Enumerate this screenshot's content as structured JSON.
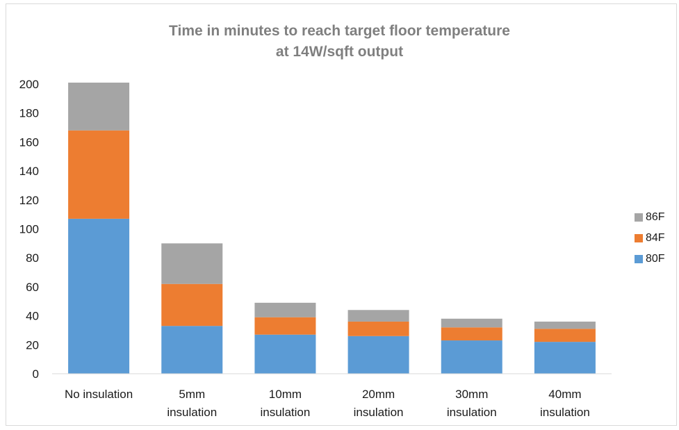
{
  "chart_data": {
    "type": "bar",
    "stacked": true,
    "title_line1": "Time in minutes to reach target floor temperature",
    "title_line2": "at 14W/sqft output",
    "categories": [
      [
        "No insulation"
      ],
      [
        "5mm",
        "insulation"
      ],
      [
        "10mm",
        "insulation"
      ],
      [
        "20mm",
        "insulation"
      ],
      [
        "30mm",
        "insulation"
      ],
      [
        "40mm",
        "insulation"
      ]
    ],
    "series": [
      {
        "name": "80F",
        "color": "#5b9bd5",
        "values": [
          107,
          33,
          27,
          26,
          23,
          22
        ]
      },
      {
        "name": "84F",
        "color": "#ed7d31",
        "values": [
          61,
          29,
          12,
          10,
          9,
          9
        ]
      },
      {
        "name": "86F",
        "color": "#a5a5a5",
        "values": [
          33,
          28,
          10,
          8,
          6,
          5
        ]
      }
    ],
    "ylim": [
      0,
      200
    ],
    "yticks": [
      0,
      20,
      40,
      60,
      80,
      100,
      120,
      140,
      160,
      180,
      200
    ],
    "grid": false,
    "legend_position": "right"
  }
}
